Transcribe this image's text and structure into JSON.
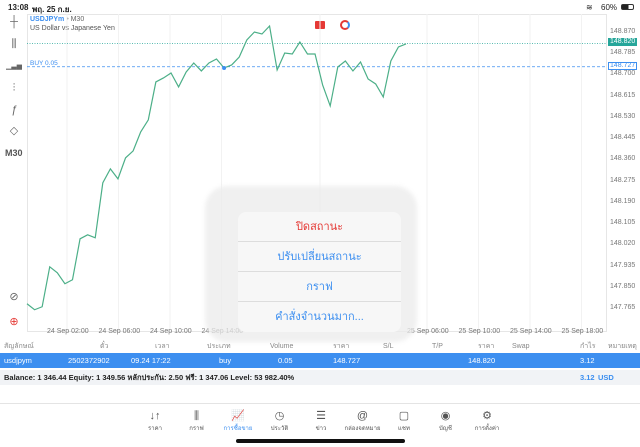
{
  "status_bar": {
    "time": "13:08",
    "date": "พฤ. 25 ก.ย.",
    "battery": "60%"
  },
  "chart_header": {
    "symbol": "USDJPYm",
    "timeframe": "M30",
    "description": "US Dollar vs Japanese Yen",
    "buy_label": "BUY 0.05"
  },
  "left_toolbar": {
    "items": [
      "crosshair-icon",
      "candlestick-icon",
      "indicators-icon",
      "settings-sliders-icon",
      "function-icon",
      "objects-icon"
    ],
    "timeframe": "M30"
  },
  "chart_data": {
    "type": "line",
    "color": "#4caf88",
    "ylim": [
      147.72,
      148.91
    ],
    "y_ticks": [
      "148.870",
      "148.785",
      "148.700",
      "148.615",
      "148.530",
      "148.445",
      "148.360",
      "148.275",
      "148.190",
      "148.105",
      "148.020",
      "147.935",
      "147.850",
      "147.765"
    ],
    "x_ticks": [
      "24 Sep 02:00",
      "24 Sep 06:00",
      "24 Sep 10:00",
      "24 Sep 14:00",
      "",
      "25 Sep 06:00",
      "25 Sep 10:00",
      "25 Sep 14:00",
      "25 Sep 18:00"
    ],
    "values": [
      147.778,
      147.754,
      147.766,
      147.926,
      147.902,
      147.858,
      147.874,
      148.038,
      148.054,
      148.042,
      148.262,
      148.318,
      148.278,
      148.362,
      148.39,
      148.466,
      148.514,
      148.666,
      148.682,
      148.702,
      148.646,
      148.706,
      148.742,
      148.71,
      148.742,
      148.758,
      148.722,
      148.734,
      148.766,
      148.834,
      148.866,
      148.858,
      148.89,
      148.714,
      148.782,
      148.778,
      148.826,
      148.778,
      148.778,
      148.654,
      148.57,
      148.726,
      148.75,
      148.71,
      148.746,
      148.678,
      148.658,
      148.606,
      148.75,
      148.806,
      148.818
    ],
    "current_price": "148.820",
    "current_color": "#26a69a",
    "entry_price": "148.727",
    "entry_color": "#3d8ff0",
    "entry_index": 26
  },
  "popup": {
    "items": [
      {
        "label": "ปิดสถานะ",
        "color": "#e53935"
      },
      {
        "label": "ปรับเปลี่ยนสถานะ",
        "color": "#3d8ff0"
      },
      {
        "label": "กราฟ",
        "color": "#3d8ff0"
      },
      {
        "label": "คำสั่งจำนวนมาก...",
        "color": "#3d8ff0"
      }
    ]
  },
  "table": {
    "headers": [
      "สัญลักษณ์",
      "ตั๋ว",
      "เวลา",
      "ประเภท",
      "Volume",
      "ราคา",
      "S/L",
      "T/P",
      "ราคา",
      "Swap",
      "กำไร",
      "หมายเหตุ"
    ],
    "row": {
      "symbol": "usdjpym",
      "ticket": "2502372902",
      "time": "09.24 17:22",
      "type": "buy",
      "volume": "0.05",
      "open_price": "148.727",
      "current_price": "148.820",
      "profit": "3.12"
    },
    "balance": "Balance: 1 346.44 Equity: 1 349.56 หลักประกัน: 2.50 ฟรี: 1 347.06 Level: 53 982.40%",
    "total_profit": "3.12",
    "currency": "USD"
  },
  "tabs": [
    {
      "label": "ราคา",
      "icon": "↓↑"
    },
    {
      "label": "กราฟ",
      "icon": "⫼"
    },
    {
      "label": "การซื้อขาย",
      "icon": "📈"
    },
    {
      "label": "ประวัติ",
      "icon": "◷"
    },
    {
      "label": "ข่าว",
      "icon": "☰"
    },
    {
      "label": "กล่องจดหมาย",
      "icon": "@"
    },
    {
      "label": "แชท",
      "icon": "▢"
    },
    {
      "label": "บัญชี",
      "icon": "◉"
    },
    {
      "label": "การตั้งค่า",
      "icon": "⚙"
    }
  ],
  "active_tab": 2
}
